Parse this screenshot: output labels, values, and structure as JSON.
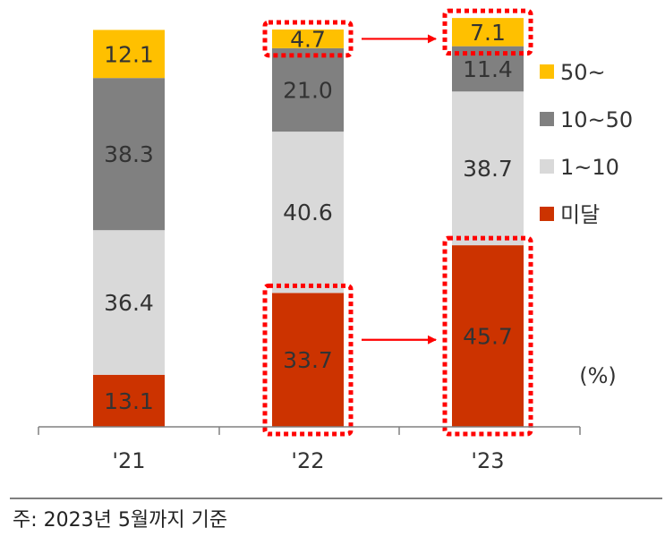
{
  "chart_data": {
    "type": "bar",
    "stacked": true,
    "categories": [
      "'21",
      "'22",
      "'23"
    ],
    "series": [
      {
        "name": "미달",
        "color": "#CC3300",
        "values": [
          13.1,
          33.7,
          45.7
        ]
      },
      {
        "name": "1~10",
        "color": "#D9D9D9",
        "values": [
          36.4,
          40.6,
          38.7
        ]
      },
      {
        "name": "10~50",
        "color": "#808080",
        "values": [
          38.3,
          21.0,
          11.4
        ]
      },
      {
        "name": "50~",
        "color": "#FFC000",
        "values": [
          12.1,
          4.7,
          7.1
        ]
      }
    ],
    "data_labels": [
      [
        "13.1",
        "33.7",
        "45.7"
      ],
      [
        "36.4",
        "40.6",
        "38.7"
      ],
      [
        "38.3",
        "21.0",
        "11.4"
      ],
      [
        "12.1",
        "4.7",
        "7.1"
      ]
    ],
    "legend": [
      "50~",
      "10~50",
      "1~10",
      "미달"
    ],
    "legend_position": "right",
    "unit_label": "(%)",
    "ylim": [
      0,
      100
    ],
    "grid": false,
    "highlights": [
      {
        "series": "50~",
        "from_category": "'22",
        "to_category": "'23"
      },
      {
        "series": "미달",
        "from_category": "'22",
        "to_category": "'23"
      }
    ],
    "highlight_color": "#FF0000"
  },
  "footnote": "주: 2023년 5월까지 기준"
}
